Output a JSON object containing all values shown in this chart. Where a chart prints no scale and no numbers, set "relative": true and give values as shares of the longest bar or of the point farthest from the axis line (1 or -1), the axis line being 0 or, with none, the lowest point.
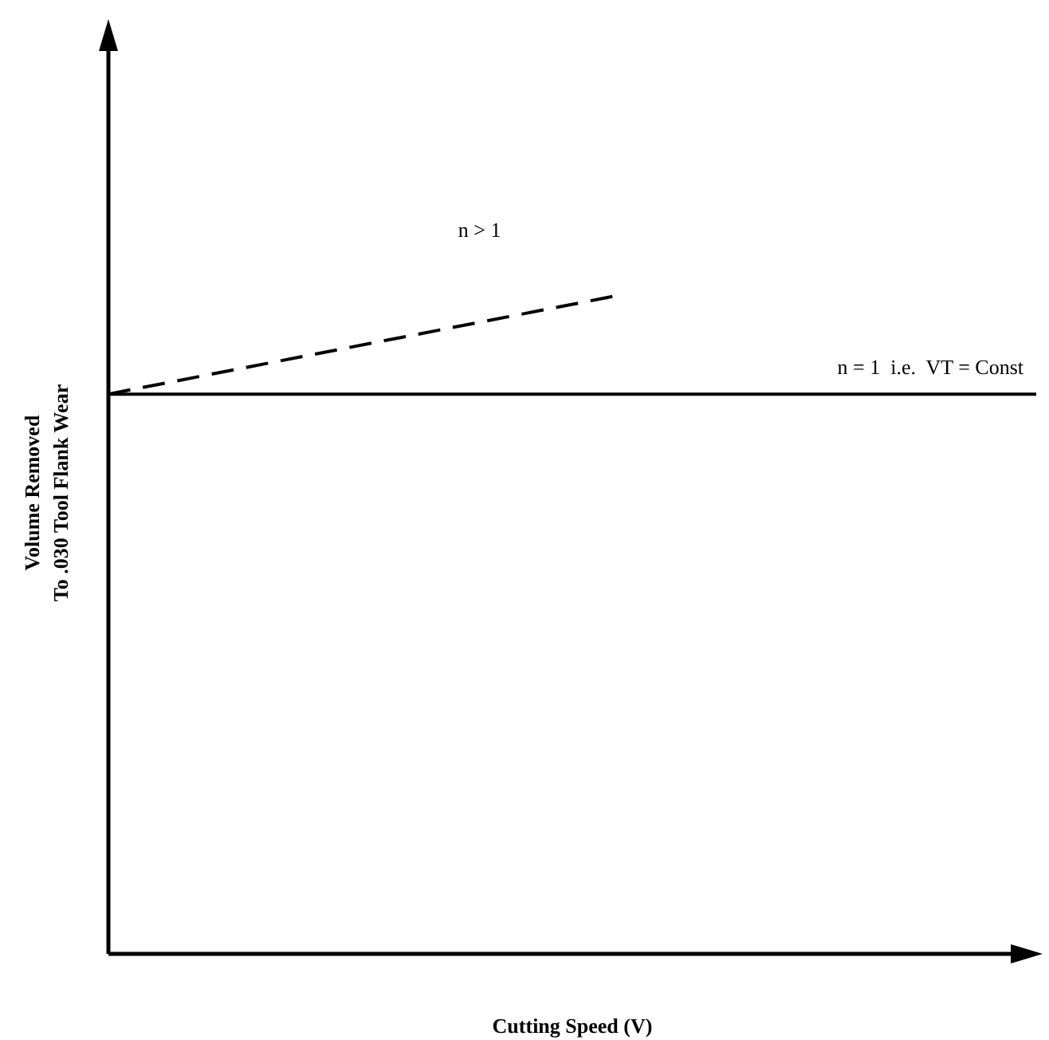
{
  "chart_data": {
    "type": "line",
    "relative": true,
    "xlabel": "Cutting Speed (V)",
    "ylabel": "Volume Removed\nTo .030 Tool Flank Wear",
    "categories": [
      null,
      null,
      null,
      null,
      null,
      null,
      null,
      null,
      null,
      null,
      null,
      null,
      null,
      null,
      null,
      null,
      null,
      null,
      null,
      null,
      null
    ],
    "series": [
      {
        "color": "#000000",
        "line_style": "dashed",
        "values": [
          0.85,
          null,
          null,
          null,
          null,
          null,
          null,
          null,
          null,
          null,
          null,
          1,
          null,
          null,
          null,
          null,
          null,
          null,
          null,
          null,
          null
        ]
      },
      {
        "color": "#000000",
        "line_style": "solid",
        "values": [
          0.85,
          0.85,
          0.85,
          0.85,
          0.85,
          0.85,
          0.85,
          0.85,
          0.85,
          0.85,
          0.85,
          0.85,
          0.85,
          0.85,
          0.85,
          0.85,
          0.85,
          0.85,
          0.85,
          0.85,
          0.85
        ]
      }
    ],
    "annotations": [
      "n > 1",
      "n = 1  i.e.  VT = Const"
    ],
    "legend": false,
    "marker": "none"
  }
}
